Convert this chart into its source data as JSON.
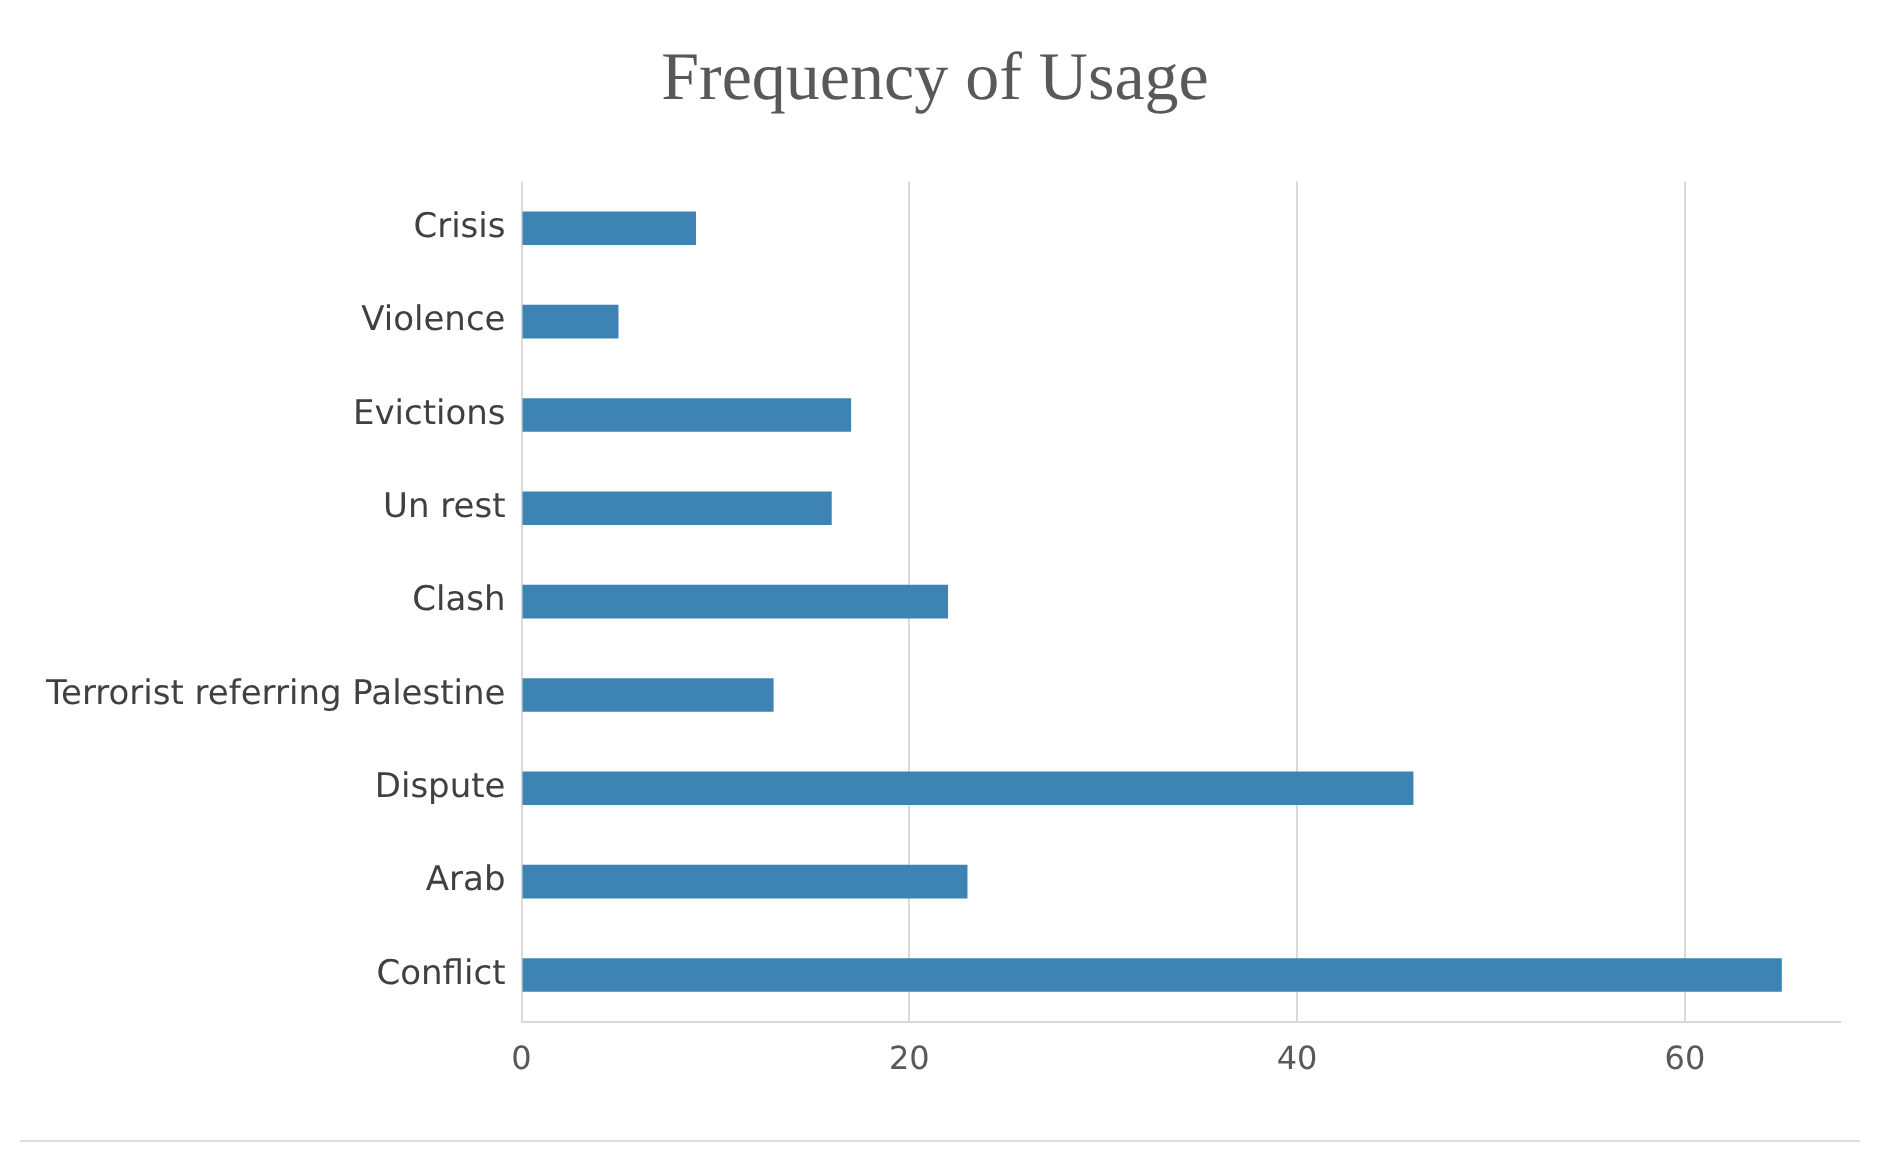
{
  "chart_data": {
    "type": "bar",
    "orientation": "horizontal",
    "title": "Frequency of Usage",
    "categories": [
      "Crisis",
      "Violence",
      "Evictions",
      "Un rest",
      "Clash",
      "Terrorist referring Palestine",
      "Dispute",
      "Arab",
      "Conflict"
    ],
    "values": [
      9,
      5,
      17,
      16,
      22,
      13,
      46,
      23,
      65
    ],
    "color": "#3d84b4",
    "xlim": [
      0,
      68
    ],
    "xticks": [
      0,
      20,
      40,
      60
    ],
    "grid": "x",
    "legend": false
  }
}
